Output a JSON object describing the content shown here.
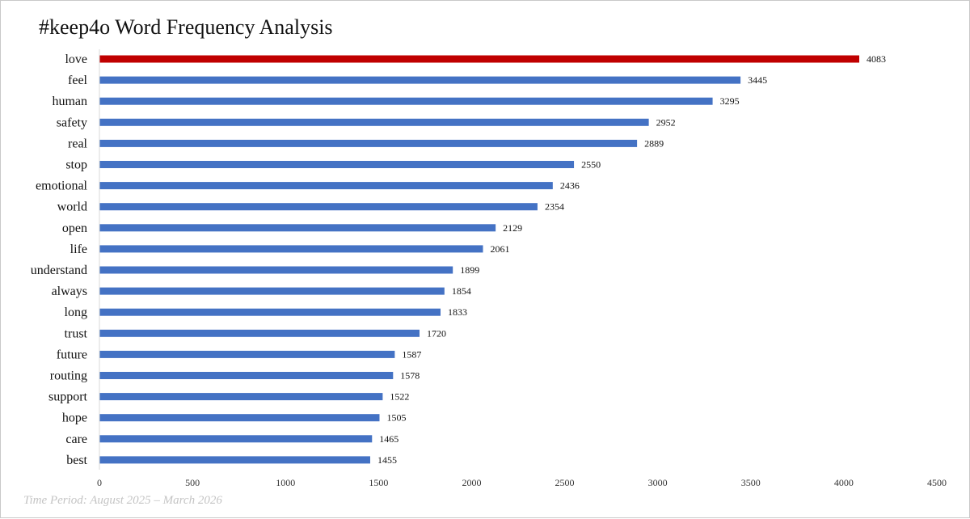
{
  "chart_data": {
    "type": "bar",
    "orientation": "horizontal",
    "title": "#keep4o Word Frequency Analysis",
    "footnote": "Time Period: August 2025 – March 2026",
    "xlabel": "",
    "ylabel": "",
    "xlim": [
      0,
      4500
    ],
    "xticks": [
      0,
      500,
      1000,
      1500,
      2000,
      2500,
      3000,
      3500,
      4000,
      4500
    ],
    "grid": false,
    "legend": "none",
    "categories": [
      "love",
      "feel",
      "human",
      "safety",
      "real",
      "stop",
      "emotional",
      "world",
      "open",
      "life",
      "understand",
      "always",
      "long",
      "trust",
      "future",
      "routing",
      "support",
      "hope",
      "care",
      "best"
    ],
    "values": [
      4083,
      3445,
      3295,
      2952,
      2889,
      2550,
      2436,
      2354,
      2129,
      2061,
      1899,
      1854,
      1833,
      1720,
      1587,
      1578,
      1522,
      1505,
      1465,
      1455
    ],
    "colors": {
      "default": "#4472c4",
      "highlight": "#c00000"
    },
    "highlight_index": 0
  }
}
